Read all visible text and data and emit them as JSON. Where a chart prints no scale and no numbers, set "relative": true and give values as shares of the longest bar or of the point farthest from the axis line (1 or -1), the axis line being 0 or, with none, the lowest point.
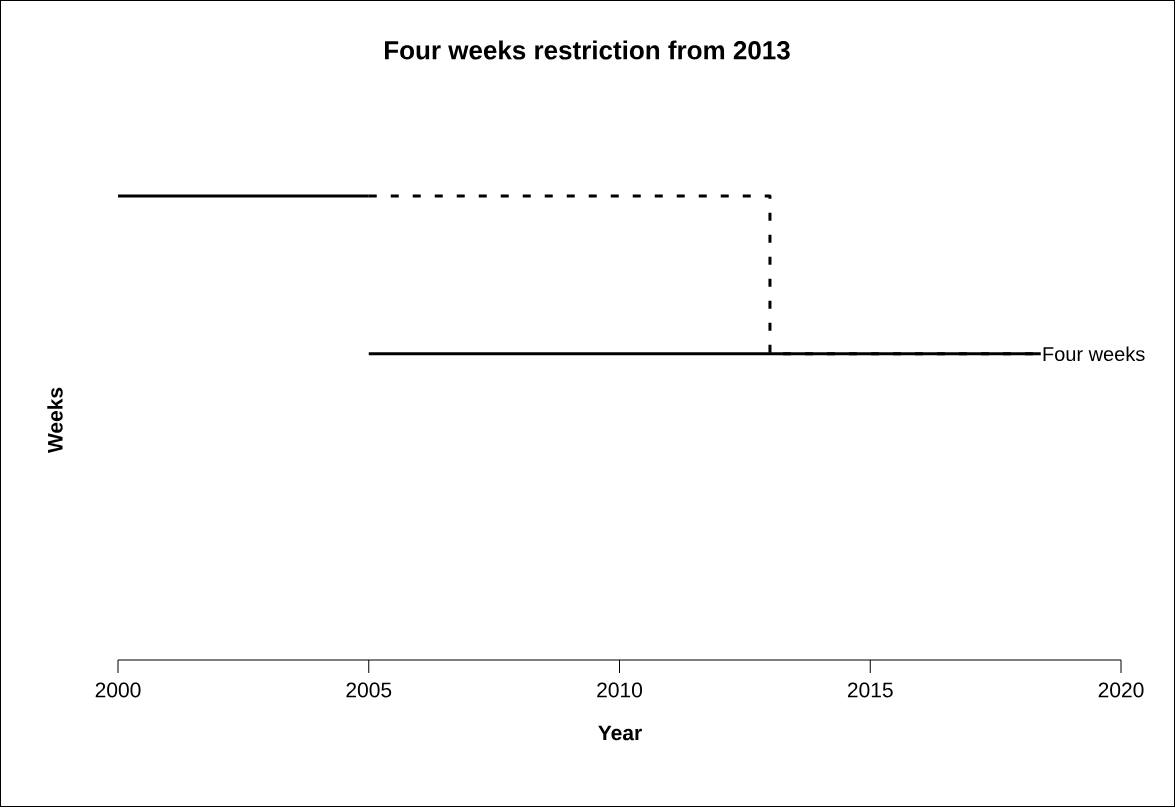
{
  "chart_data": {
    "type": "line",
    "title": "Four weeks restriction from 2013",
    "xlabel": "Year",
    "ylabel": "Weeks",
    "relative": true,
    "xlim": [
      2000,
      2020
    ],
    "xticks": [
      2000,
      2005,
      2010,
      2015,
      2020
    ],
    "grid": false,
    "legend": false,
    "marker": "none",
    "series": [
      {
        "x": [
          2000,
          2005
        ],
        "values": [
          1,
          1
        ],
        "color": "#000000",
        "line_style": "solid"
      },
      {
        "x": [
          2005,
          2013,
          2013,
          2018.4
        ],
        "values": [
          1,
          1,
          0.66,
          0.66
        ],
        "color": "#000000",
        "line_style": "dashed"
      },
      {
        "name": "Four weeks",
        "x": [
          2005,
          2018.4
        ],
        "values": [
          0.66,
          0.66
        ],
        "color": "#000000",
        "line_style": "solid"
      }
    ]
  }
}
